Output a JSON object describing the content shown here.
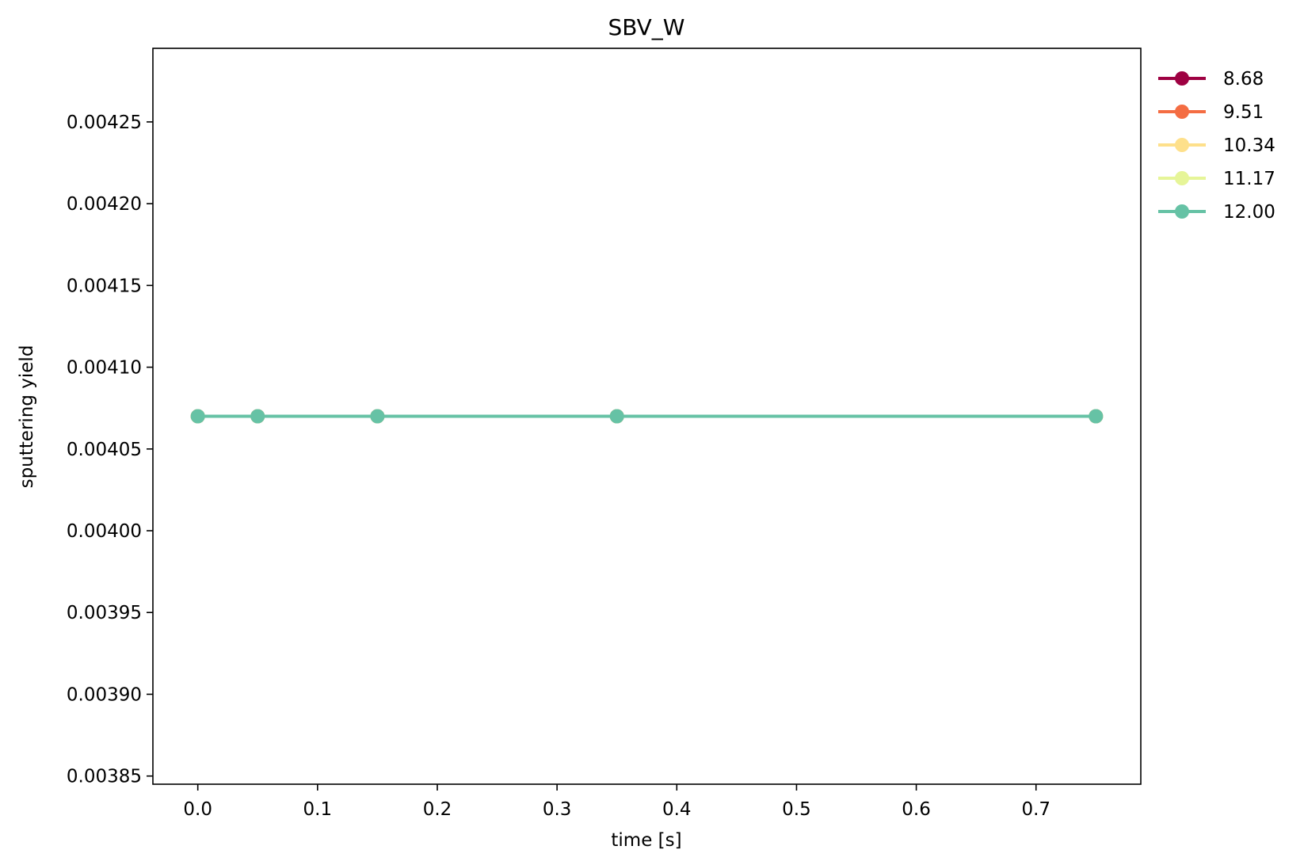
{
  "chart_data": {
    "type": "line",
    "title": "SBV_W",
    "xlabel": "time [s]",
    "ylabel": "sputtering yield",
    "xlim": [
      -0.0375,
      0.7875
    ],
    "ylim": [
      0.003845,
      0.004295
    ],
    "xticks": [
      0.0,
      0.1,
      0.2,
      0.3,
      0.4,
      0.5,
      0.6,
      0.7
    ],
    "xtick_labels": [
      "0.0",
      "0.1",
      "0.2",
      "0.3",
      "0.4",
      "0.5",
      "0.6",
      "0.7"
    ],
    "yticks": [
      0.00385,
      0.0039,
      0.00395,
      0.004,
      0.00405,
      0.0041,
      0.00415,
      0.0042,
      0.00425
    ],
    "ytick_labels": [
      "0.00385",
      "0.00390",
      "0.00395",
      "0.00400",
      "0.00405",
      "0.00410",
      "0.00415",
      "0.00420",
      "0.00425"
    ],
    "grid": false,
    "legend_position": "outside-top-right",
    "x": [
      0.0,
      0.05,
      0.15,
      0.35,
      0.75
    ],
    "series": [
      {
        "name": "8.68",
        "color": "#9e0142",
        "values": [
          0.00407,
          0.00407,
          0.00407,
          0.00407,
          0.00407
        ]
      },
      {
        "name": "9.51",
        "color": "#f46d43",
        "values": [
          0.00407,
          0.00407,
          0.00407,
          0.00407,
          0.00407
        ]
      },
      {
        "name": "10.34",
        "color": "#fee08b",
        "values": [
          0.00407,
          0.00407,
          0.00407,
          0.00407,
          0.00407
        ]
      },
      {
        "name": "11.17",
        "color": "#e6f598",
        "values": [
          0.00407,
          0.00407,
          0.00407,
          0.00407,
          0.00407
        ]
      },
      {
        "name": "12.00",
        "color": "#66c2a5",
        "values": [
          0.00407,
          0.00407,
          0.00407,
          0.00407,
          0.00407
        ]
      }
    ]
  }
}
